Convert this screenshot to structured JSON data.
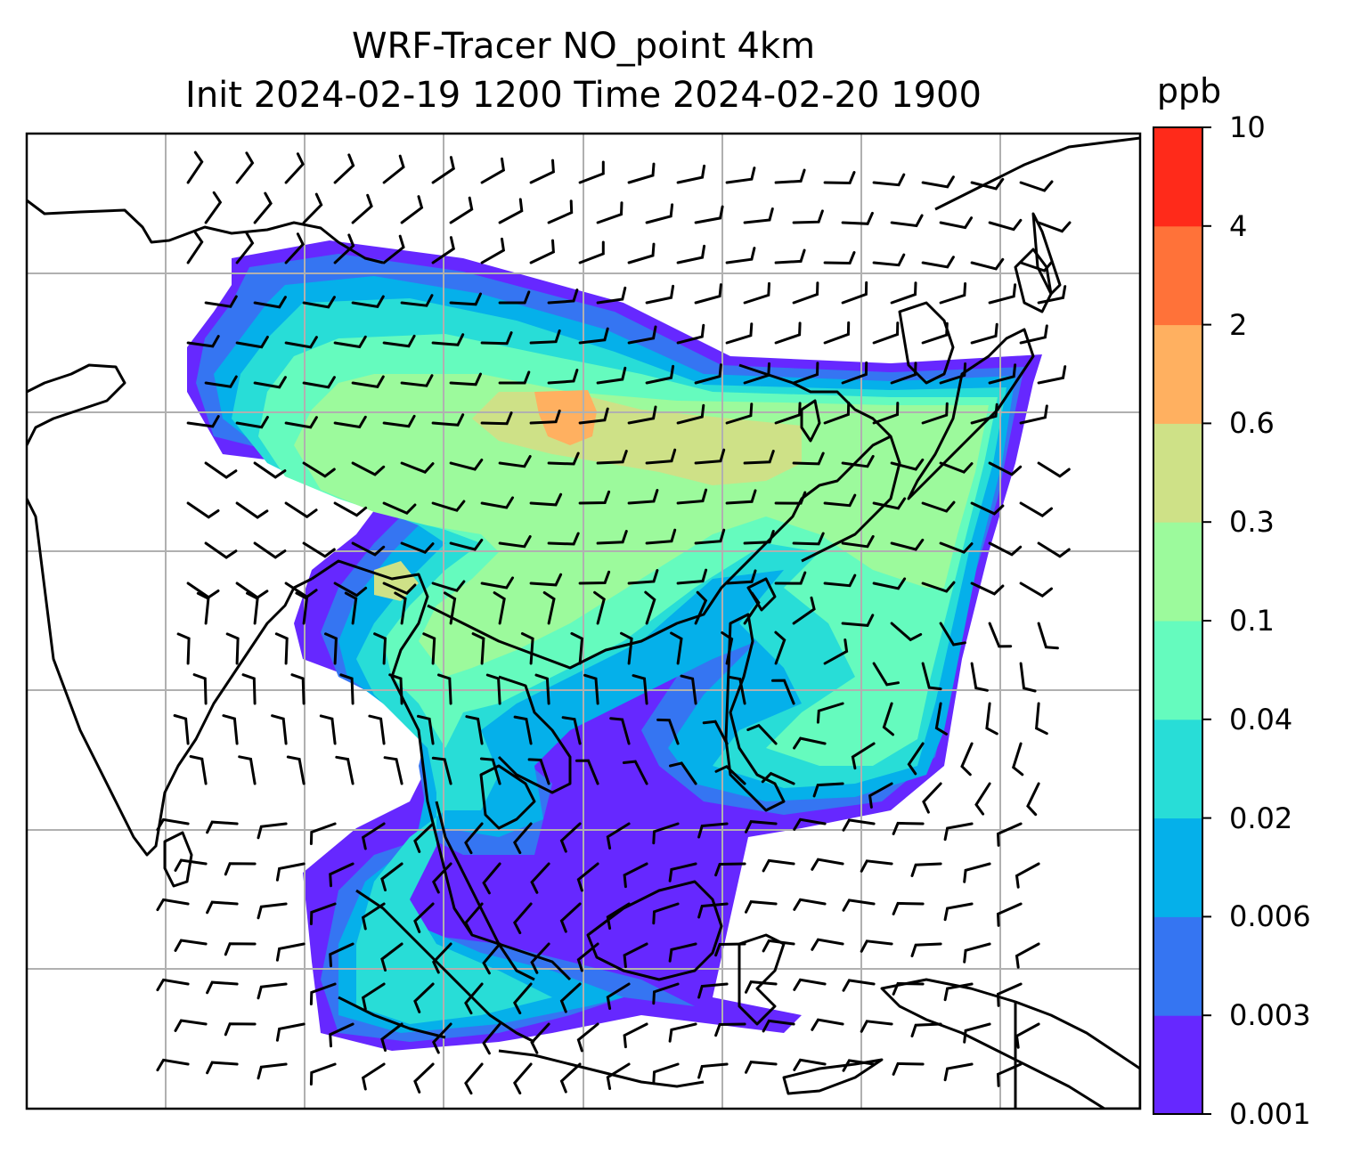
{
  "title": {
    "line1": "WRF-Tracer NO_point 4km",
    "line2": "Init 2024-02-19 1200 Time 2024-02-20 1900"
  },
  "colorbar": {
    "unit": "ppb",
    "ticks": [
      "0.001",
      "0.003",
      "0.006",
      "0.02",
      "0.04",
      "0.1",
      "0.3",
      "0.6",
      "2",
      "4",
      "10"
    ],
    "colors": [
      "#6628FF",
      "#3575F2",
      "#05B0EA",
      "#28DDD7",
      "#65FBBE",
      "#9CFA9C",
      "#CEE187",
      "#FFB060",
      "#FF7239",
      "#FF2A1A"
    ]
  },
  "map": {
    "background": "#ffffff",
    "gridline_color": "#b0b0b0",
    "coastline_color": "#000000",
    "barb_color": "#000000"
  }
}
